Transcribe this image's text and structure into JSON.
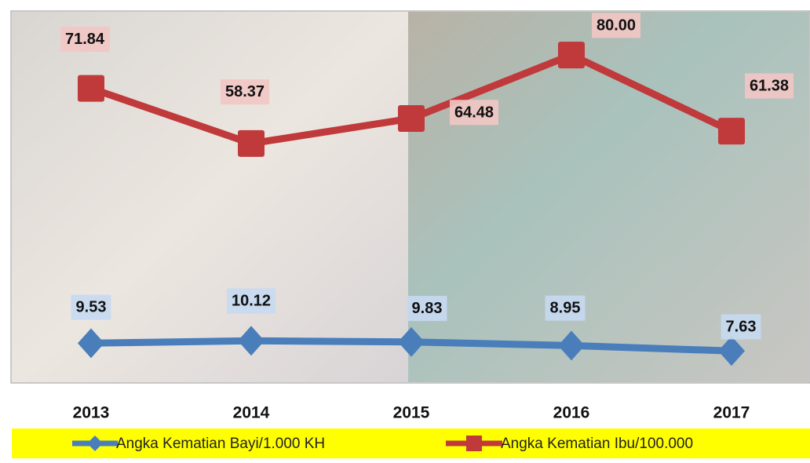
{
  "chart_data": {
    "type": "line",
    "categories": [
      "2013",
      "2014",
      "2015",
      "2016",
      "2017"
    ],
    "series": [
      {
        "name": "Angka Kematian Bayi/1.000 KH",
        "color": "#4a7ebb",
        "values": [
          9.53,
          10.12,
          9.83,
          8.95,
          7.63
        ],
        "value_labels": [
          "9.53",
          "10.12",
          "9.83",
          "8.95",
          "7.63"
        ],
        "marker": "diamond"
      },
      {
        "name": "Angka Kematian Ibu/100.000",
        "color": "#c0393b",
        "values": [
          71.84,
          58.37,
          64.48,
          80,
          61.38
        ],
        "value_labels": [
          "71.84",
          "58.37",
          "64.48",
          "80.00",
          "61.38"
        ],
        "marker": "square"
      }
    ],
    "ylim": [
      0,
      90
    ]
  }
}
